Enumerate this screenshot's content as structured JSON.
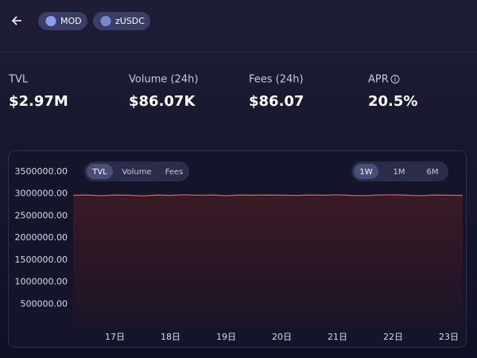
{
  "header": {
    "tokens": [
      "MOD",
      "zUSDC"
    ]
  },
  "stats": [
    {
      "label": "TVL",
      "value": "$2.97M"
    },
    {
      "label": "Volume (24h)",
      "value": "$86.07K"
    },
    {
      "label": "Fees (24h)",
      "value": "$86.07"
    },
    {
      "label": "APR",
      "value": "20.5%"
    }
  ],
  "chart_tabs": [
    "TVL",
    "Volume",
    "Fees"
  ],
  "range_tabs": [
    "1W",
    "1M",
    "6M"
  ],
  "chart_data": {
    "type": "area",
    "color": "#d9605f",
    "categories": [
      null,
      null,
      null,
      "17日",
      null,
      null,
      null,
      "18日",
      null,
      null,
      null,
      "19日",
      null,
      null,
      null,
      "20日",
      null,
      null,
      null,
      "21日",
      null,
      null,
      null,
      "22日",
      null,
      null,
      null,
      "23日",
      null
    ],
    "values": [
      2970000,
      2975000,
      2960000,
      2975000,
      2970000,
      2955000,
      2975000,
      2965000,
      2980000,
      2970000,
      2975000,
      2960000,
      2975000,
      2970000,
      2975000,
      2970000,
      2965000,
      2975000,
      2970000,
      2980000,
      2965000,
      2960000,
      2975000,
      2980000,
      2970000,
      2960000,
      2975000,
      2970000,
      2965000
    ],
    "ylim": [
      0,
      3500000
    ],
    "yticks": [
      {
        "value": 500000,
        "label": "500000.00"
      },
      {
        "value": 1000000,
        "label": "1000000.00"
      },
      {
        "value": 1500000,
        "label": "1500000.00"
      },
      {
        "value": 2000000,
        "label": "2000000.00"
      },
      {
        "value": 2500000,
        "label": "2500000.00"
      },
      {
        "value": 3000000,
        "label": "3000000.00"
      },
      {
        "value": 3500000,
        "label": "3500000.00"
      }
    ]
  }
}
